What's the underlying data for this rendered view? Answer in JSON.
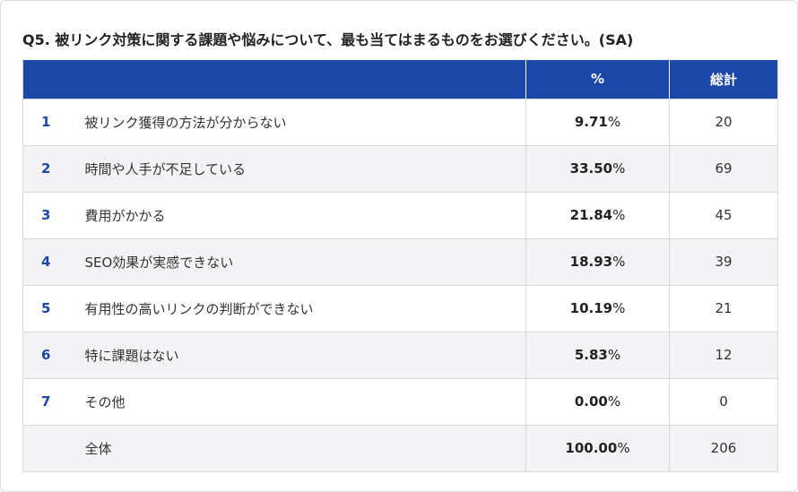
{
  "title": "Q5. 被リンク対策に関する課題や悩みについて、最も当てはまるものをお選びください。(SA)",
  "headers": {
    "blank": "",
    "percent": "%",
    "total": "総計"
  },
  "rows": [
    {
      "no": "1",
      "label": "被リンク獲得の方法が分からない",
      "value": "9.71",
      "unit": "%",
      "count": "20"
    },
    {
      "no": "2",
      "label": "時間や人手が不足している",
      "value": "33.50",
      "unit": "%",
      "count": "69"
    },
    {
      "no": "3",
      "label": "費用がかかる",
      "value": "21.84",
      "unit": "%",
      "count": "45"
    },
    {
      "no": "4",
      "label": "SEO効果が実感できない",
      "value": "18.93",
      "unit": "%",
      "count": "39"
    },
    {
      "no": "5",
      "label": "有用性の高いリンクの判断ができない",
      "value": "10.19",
      "unit": "%",
      "count": "21"
    },
    {
      "no": "6",
      "label": "特に課題はない",
      "value": "5.83",
      "unit": "%",
      "count": "12"
    },
    {
      "no": "7",
      "label": "その他",
      "value": "0.00",
      "unit": "%",
      "count": "0"
    },
    {
      "no": "",
      "label": "全体",
      "value": "100.00",
      "unit": "%",
      "count": "206"
    }
  ]
}
